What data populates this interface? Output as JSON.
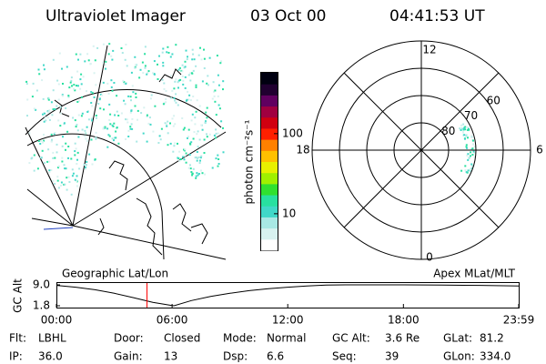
{
  "header": {
    "title": "Ultraviolet Imager",
    "date": "03 Oct 00",
    "time": "04:41:53 UT"
  },
  "colorbar": {
    "label": "photon cm⁻²s⁻¹",
    "log": true,
    "lim": [
      3.5,
      575
    ],
    "ticks": [
      10,
      100
    ],
    "colors": [
      "#ffffff",
      "#d8f2f0",
      "#a8e8e4",
      "#40d8c8",
      "#28e0a0",
      "#30e030",
      "#a0f000",
      "#e8f000",
      "#ffc000",
      "#ff8000",
      "#ff2000",
      "#d00010",
      "#a00040",
      "#600060",
      "#200030",
      "#000010"
    ]
  },
  "polar": {
    "lim": [
      90,
      50
    ],
    "lat_ticks": [
      80,
      70,
      60
    ],
    "mlt_ticks": [
      12,
      18,
      6,
      0
    ]
  },
  "altitude": {
    "ylabel": "GC Alt",
    "left_title": "Geographic Lat/Lon",
    "right_title": "Apex MLat/MLT",
    "ylim": [
      1.8,
      9.0
    ],
    "yticks": [
      {
        "value": 9.0,
        "label": "9.0"
      },
      {
        "value": 1.8,
        "label": "1.8"
      }
    ],
    "xlim": [
      0,
      23.98
    ],
    "xticks": [
      {
        "value": 0,
        "label": "00:00"
      },
      {
        "value": 6,
        "label": "06:00"
      },
      {
        "value": 12,
        "label": "12:00"
      },
      {
        "value": 18,
        "label": "18:00"
      },
      {
        "value": 23.98,
        "label": "23:59"
      }
    ],
    "x": [
      0,
      1,
      2,
      3,
      4,
      5,
      6,
      6.1,
      7,
      8,
      9,
      10,
      11,
      12,
      13,
      14,
      15,
      16,
      17,
      18,
      20,
      22,
      23.98
    ],
    "values": [
      8.8,
      8.2,
      7.3,
      6.1,
      4.6,
      3.0,
      1.9,
      1.8,
      3.6,
      5.0,
      6.1,
      7.0,
      7.7,
      8.2,
      8.6,
      8.9,
      9.0,
      9.0,
      9.0,
      9.0,
      8.9,
      8.8,
      8.6
    ],
    "marker_x": 4.698,
    "marker_color": "#ff0000"
  },
  "footer": [
    [
      {
        "label": "Flt:",
        "value": "LBHL"
      },
      {
        "label": "Door:",
        "value": "Closed"
      },
      {
        "label": "Mode:",
        "value": "Normal"
      },
      {
        "label": "GC Alt:",
        "value": "3.6 Re"
      },
      {
        "label": "GLat:",
        "value": "81.2"
      }
    ],
    [
      {
        "label": "IP:",
        "value": "36.0"
      },
      {
        "label": "Gain:",
        "value": "13"
      },
      {
        "label": "Dsp:",
        "value": "6.6"
      },
      {
        "label": "Seq:",
        "value": "39"
      },
      {
        "label": "GLon:",
        "value": "334.0"
      }
    ]
  ]
}
